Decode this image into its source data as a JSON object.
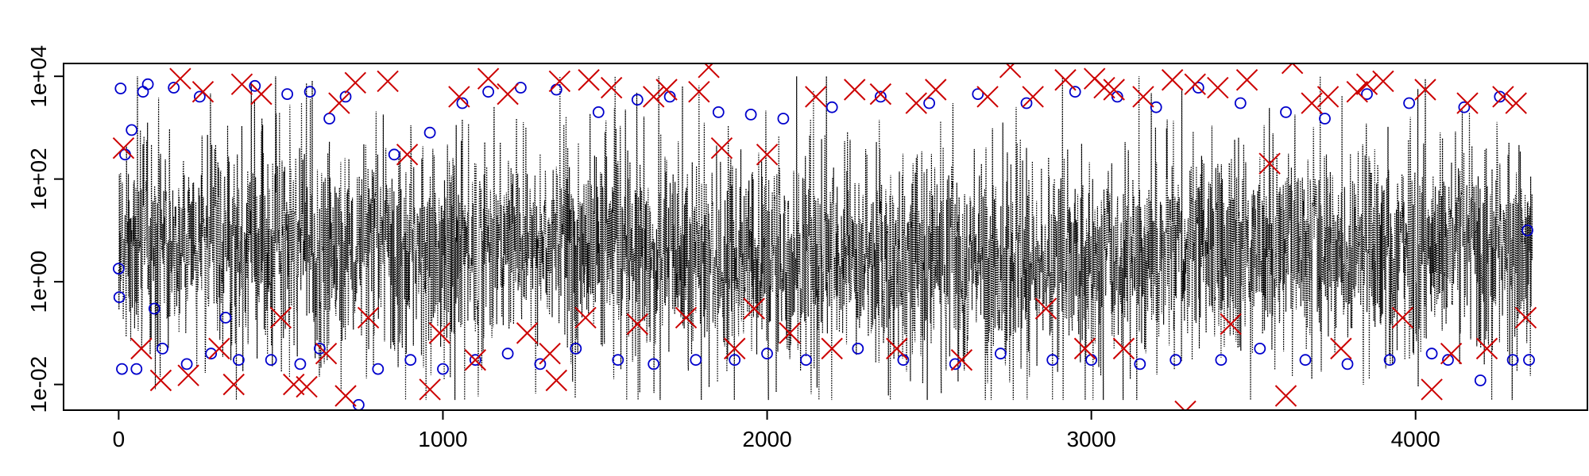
{
  "chart_data": {
    "type": "line",
    "title": "",
    "xlabel": "",
    "ylabel": "",
    "x_range": [
      0,
      4360
    ],
    "xlim": [
      -170,
      4530
    ],
    "ylim_log10": [
      -2.5,
      4.25
    ],
    "y_scale": "log",
    "x_ticks": [
      {
        "value": 0,
        "label": "0"
      },
      {
        "value": 1000,
        "label": "1000"
      },
      {
        "value": 2000,
        "label": "2000"
      },
      {
        "value": 3000,
        "label": "3000"
      },
      {
        "value": 4000,
        "label": "4000"
      }
    ],
    "y_ticks": [
      {
        "value": 0.01,
        "label": "1e-02"
      },
      {
        "value": 1,
        "label": "1e+00"
      },
      {
        "value": 100,
        "label": "1e+02"
      },
      {
        "value": 10000,
        "label": "1e+04"
      }
    ],
    "grid": false,
    "legend": "none",
    "series": [
      {
        "mark": "dotted-line",
        "color": "#000000",
        "description_values": "dense time series of ~4360 observations, mostly between 1e-01 and 1e+03"
      },
      {
        "mark": "circle",
        "color": "#0000cc",
        "points": [
          [
            0,
            1.8
          ],
          [
            2,
            0.5
          ],
          [
            6,
            5800
          ],
          [
            10,
            0.02
          ],
          [
            20,
            300
          ],
          [
            40,
            900
          ],
          [
            55,
            0.02
          ],
          [
            75,
            5000
          ],
          [
            90,
            7000
          ],
          [
            110,
            0.3
          ],
          [
            135,
            0.05
          ],
          [
            170,
            6000
          ],
          [
            210,
            0.025
          ],
          [
            250,
            4000
          ],
          [
            285,
            0.04
          ],
          [
            330,
            0.2
          ],
          [
            370,
            0.03
          ],
          [
            420,
            6500
          ],
          [
            470,
            0.03
          ],
          [
            520,
            4500
          ],
          [
            560,
            0.025
          ],
          [
            590,
            5000
          ],
          [
            620,
            0.05
          ],
          [
            650,
            1500
          ],
          [
            700,
            4000
          ],
          [
            740,
            0.004
          ],
          [
            800,
            0.02
          ],
          [
            850,
            300
          ],
          [
            900,
            0.03
          ],
          [
            960,
            800
          ],
          [
            1000,
            0.02
          ],
          [
            1060,
            3000
          ],
          [
            1100,
            0.03
          ],
          [
            1140,
            5000
          ],
          [
            1200,
            0.04
          ],
          [
            1240,
            6000
          ],
          [
            1300,
            0.025
          ],
          [
            1350,
            5500
          ],
          [
            1410,
            0.05
          ],
          [
            1480,
            2000
          ],
          [
            1540,
            0.03
          ],
          [
            1600,
            3500
          ],
          [
            1650,
            0.025
          ],
          [
            1700,
            4000
          ],
          [
            1780,
            0.03
          ],
          [
            1850,
            2000
          ],
          [
            1900,
            0.03
          ],
          [
            1950,
            1800
          ],
          [
            2000,
            0.04
          ],
          [
            2050,
            1500
          ],
          [
            2120,
            0.03
          ],
          [
            2200,
            2500
          ],
          [
            2280,
            0.05
          ],
          [
            2350,
            4000
          ],
          [
            2420,
            0.03
          ],
          [
            2500,
            3000
          ],
          [
            2580,
            0.025
          ],
          [
            2650,
            4500
          ],
          [
            2720,
            0.04
          ],
          [
            2800,
            3000
          ],
          [
            2880,
            0.03
          ],
          [
            2950,
            5000
          ],
          [
            3000,
            0.03
          ],
          [
            3080,
            4000
          ],
          [
            3150,
            0.025
          ],
          [
            3200,
            2500
          ],
          [
            3260,
            0.03
          ],
          [
            3330,
            6000
          ],
          [
            3400,
            0.03
          ],
          [
            3460,
            3000
          ],
          [
            3520,
            0.05
          ],
          [
            3600,
            2000
          ],
          [
            3660,
            0.03
          ],
          [
            3720,
            1500
          ],
          [
            3790,
            0.025
          ],
          [
            3850,
            4500
          ],
          [
            3920,
            0.03
          ],
          [
            3980,
            3000
          ],
          [
            4050,
            0.04
          ],
          [
            4100,
            0.03
          ],
          [
            4150,
            2500
          ],
          [
            4200,
            0.012
          ],
          [
            4260,
            4000
          ],
          [
            4300,
            0.03
          ],
          [
            4345,
            10
          ],
          [
            4350,
            0.03
          ]
        ]
      },
      {
        "mark": "x-cross",
        "color": "#cc0000",
        "points": [
          [
            15,
            400
          ],
          [
            70,
            0.05
          ],
          [
            130,
            0.012
          ],
          [
            190,
            9000
          ],
          [
            215,
            0.015
          ],
          [
            260,
            5000
          ],
          [
            310,
            0.05
          ],
          [
            355,
            0.01
          ],
          [
            380,
            7000
          ],
          [
            440,
            4500
          ],
          [
            500,
            0.2
          ],
          [
            540,
            0.01
          ],
          [
            580,
            0.009
          ],
          [
            640,
            0.04
          ],
          [
            680,
            3000
          ],
          [
            700,
            0.006
          ],
          [
            730,
            7500
          ],
          [
            770,
            0.2
          ],
          [
            830,
            8000
          ],
          [
            890,
            300
          ],
          [
            960,
            0.008
          ],
          [
            990,
            0.1
          ],
          [
            1050,
            4000
          ],
          [
            1100,
            0.03
          ],
          [
            1140,
            9000
          ],
          [
            1200,
            4500
          ],
          [
            1260,
            0.1
          ],
          [
            1330,
            0.04
          ],
          [
            1350,
            0.012
          ],
          [
            1360,
            8000
          ],
          [
            1440,
            0.2
          ],
          [
            1450,
            8500
          ],
          [
            1520,
            6000
          ],
          [
            1600,
            0.15
          ],
          [
            1650,
            4000
          ],
          [
            1690,
            5500
          ],
          [
            1750,
            0.2
          ],
          [
            1790,
            5000
          ],
          [
            1820,
            15000
          ],
          [
            1860,
            400
          ],
          [
            1900,
            0.05
          ],
          [
            1960,
            0.3
          ],
          [
            2000,
            300
          ],
          [
            2070,
            0.1
          ],
          [
            2150,
            4000
          ],
          [
            2200,
            0.05
          ],
          [
            2270,
            5500
          ],
          [
            2350,
            4500
          ],
          [
            2400,
            0.05
          ],
          [
            2460,
            3000
          ],
          [
            2520,
            5500
          ],
          [
            2600,
            0.03
          ],
          [
            2680,
            4000
          ],
          [
            2750,
            15000
          ],
          [
            2820,
            4000
          ],
          [
            2860,
            0.3
          ],
          [
            2920,
            8500
          ],
          [
            2980,
            0.05
          ],
          [
            3010,
            9000
          ],
          [
            3040,
            6000
          ],
          [
            3070,
            5500
          ],
          [
            3100,
            0.05
          ],
          [
            3160,
            4000
          ],
          [
            3250,
            8500
          ],
          [
            3290,
            0.003
          ],
          [
            3320,
            7000
          ],
          [
            3390,
            6000
          ],
          [
            3430,
            0.15
          ],
          [
            3480,
            8500
          ],
          [
            3550,
            200
          ],
          [
            3600,
            0.006
          ],
          [
            3620,
            18000
          ],
          [
            3680,
            3000
          ],
          [
            3730,
            4000
          ],
          [
            3770,
            0.05
          ],
          [
            3820,
            5000
          ],
          [
            3850,
            7000
          ],
          [
            3900,
            8000
          ],
          [
            3960,
            0.2
          ],
          [
            4030,
            5500
          ],
          [
            4050,
            0.008
          ],
          [
            4110,
            0.04
          ],
          [
            4160,
            3000
          ],
          [
            4220,
            0.05
          ],
          [
            4270,
            4000
          ],
          [
            4310,
            3000
          ],
          [
            4340,
            0.2
          ]
        ]
      }
    ]
  }
}
